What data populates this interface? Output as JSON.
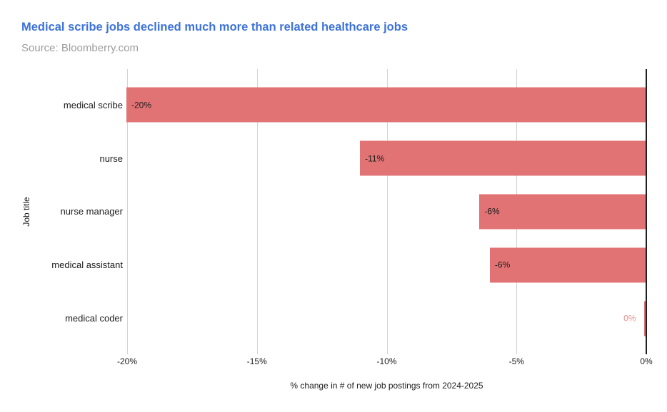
{
  "header": {
    "title": "Medical scribe jobs declined much more than related healthcare jobs",
    "source": "Source: Bloomberry.com"
  },
  "colors": {
    "bar": "#e27374",
    "title_text": "#3d72d9",
    "source_text": "#9c9c9c",
    "gridline": "#d2d2d2",
    "axis_line": "#1f1f1f",
    "text": "#1c1c1c",
    "zero_value_label": "#ea8f90",
    "background": "#ffffff"
  },
  "chart_data": {
    "type": "bar",
    "orientation": "horizontal",
    "title": "Medical scribe jobs declined much more than related healthcare jobs",
    "source": "Source: Bloomberry.com",
    "categories": [
      "medical scribe",
      "nurse",
      "nurse manager",
      "medical assistant",
      "medical coder"
    ],
    "values": [
      -20,
      -11,
      -6.4,
      -6,
      0
    ],
    "bar_labels": [
      "-20%",
      "-11%",
      "-6%",
      "-6%",
      "0%"
    ],
    "label_inside": [
      true,
      true,
      true,
      true,
      false
    ],
    "xlabel": "% change in # of new job postings from 2024-2025",
    "ylabel": "Job title",
    "xlim": [
      -20,
      0
    ],
    "x_ticks": [
      -20,
      -15,
      -10,
      -5,
      0
    ],
    "x_tick_labels": [
      "-20%",
      "-15%",
      "-10%",
      "-5%",
      "0%"
    ],
    "grid": true,
    "legend": false
  }
}
